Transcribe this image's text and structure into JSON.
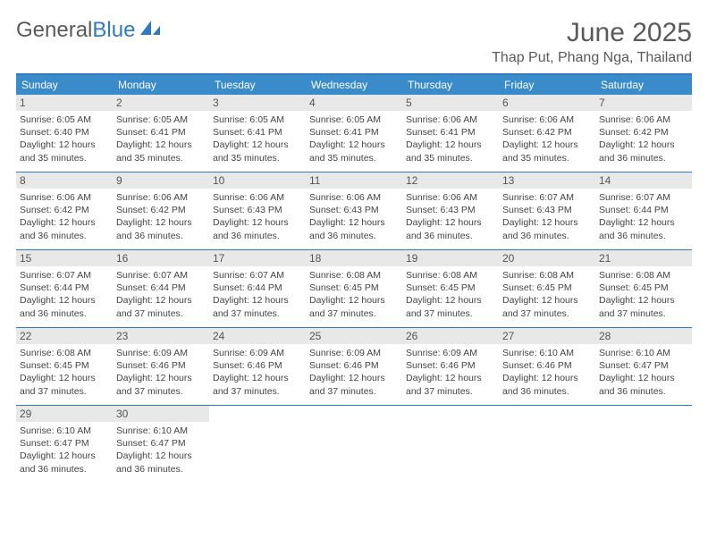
{
  "brand": {
    "part1": "General",
    "part2": "Blue"
  },
  "title": "June 2025",
  "location": "Thap Put, Phang Nga, Thailand",
  "colors": {
    "header_bg": "#3a8bc9",
    "border": "#2f7bbf",
    "daynum_bg": "#e8e8e8",
    "text": "#444444",
    "title_text": "#5a5a5a"
  },
  "dow": [
    "Sunday",
    "Monday",
    "Tuesday",
    "Wednesday",
    "Thursday",
    "Friday",
    "Saturday"
  ],
  "days": [
    {
      "n": "1",
      "sr": "6:05 AM",
      "ss": "6:40 PM",
      "dl": "12 hours and 35 minutes."
    },
    {
      "n": "2",
      "sr": "6:05 AM",
      "ss": "6:41 PM",
      "dl": "12 hours and 35 minutes."
    },
    {
      "n": "3",
      "sr": "6:05 AM",
      "ss": "6:41 PM",
      "dl": "12 hours and 35 minutes."
    },
    {
      "n": "4",
      "sr": "6:05 AM",
      "ss": "6:41 PM",
      "dl": "12 hours and 35 minutes."
    },
    {
      "n": "5",
      "sr": "6:06 AM",
      "ss": "6:41 PM",
      "dl": "12 hours and 35 minutes."
    },
    {
      "n": "6",
      "sr": "6:06 AM",
      "ss": "6:42 PM",
      "dl": "12 hours and 35 minutes."
    },
    {
      "n": "7",
      "sr": "6:06 AM",
      "ss": "6:42 PM",
      "dl": "12 hours and 36 minutes."
    },
    {
      "n": "8",
      "sr": "6:06 AM",
      "ss": "6:42 PM",
      "dl": "12 hours and 36 minutes."
    },
    {
      "n": "9",
      "sr": "6:06 AM",
      "ss": "6:42 PM",
      "dl": "12 hours and 36 minutes."
    },
    {
      "n": "10",
      "sr": "6:06 AM",
      "ss": "6:43 PM",
      "dl": "12 hours and 36 minutes."
    },
    {
      "n": "11",
      "sr": "6:06 AM",
      "ss": "6:43 PM",
      "dl": "12 hours and 36 minutes."
    },
    {
      "n": "12",
      "sr": "6:06 AM",
      "ss": "6:43 PM",
      "dl": "12 hours and 36 minutes."
    },
    {
      "n": "13",
      "sr": "6:07 AM",
      "ss": "6:43 PM",
      "dl": "12 hours and 36 minutes."
    },
    {
      "n": "14",
      "sr": "6:07 AM",
      "ss": "6:44 PM",
      "dl": "12 hours and 36 minutes."
    },
    {
      "n": "15",
      "sr": "6:07 AM",
      "ss": "6:44 PM",
      "dl": "12 hours and 36 minutes."
    },
    {
      "n": "16",
      "sr": "6:07 AM",
      "ss": "6:44 PM",
      "dl": "12 hours and 37 minutes."
    },
    {
      "n": "17",
      "sr": "6:07 AM",
      "ss": "6:44 PM",
      "dl": "12 hours and 37 minutes."
    },
    {
      "n": "18",
      "sr": "6:08 AM",
      "ss": "6:45 PM",
      "dl": "12 hours and 37 minutes."
    },
    {
      "n": "19",
      "sr": "6:08 AM",
      "ss": "6:45 PM",
      "dl": "12 hours and 37 minutes."
    },
    {
      "n": "20",
      "sr": "6:08 AM",
      "ss": "6:45 PM",
      "dl": "12 hours and 37 minutes."
    },
    {
      "n": "21",
      "sr": "6:08 AM",
      "ss": "6:45 PM",
      "dl": "12 hours and 37 minutes."
    },
    {
      "n": "22",
      "sr": "6:08 AM",
      "ss": "6:45 PM",
      "dl": "12 hours and 37 minutes."
    },
    {
      "n": "23",
      "sr": "6:09 AM",
      "ss": "6:46 PM",
      "dl": "12 hours and 37 minutes."
    },
    {
      "n": "24",
      "sr": "6:09 AM",
      "ss": "6:46 PM",
      "dl": "12 hours and 37 minutes."
    },
    {
      "n": "25",
      "sr": "6:09 AM",
      "ss": "6:46 PM",
      "dl": "12 hours and 37 minutes."
    },
    {
      "n": "26",
      "sr": "6:09 AM",
      "ss": "6:46 PM",
      "dl": "12 hours and 37 minutes."
    },
    {
      "n": "27",
      "sr": "6:10 AM",
      "ss": "6:46 PM",
      "dl": "12 hours and 36 minutes."
    },
    {
      "n": "28",
      "sr": "6:10 AM",
      "ss": "6:47 PM",
      "dl": "12 hours and 36 minutes."
    },
    {
      "n": "29",
      "sr": "6:10 AM",
      "ss": "6:47 PM",
      "dl": "12 hours and 36 minutes."
    },
    {
      "n": "30",
      "sr": "6:10 AM",
      "ss": "6:47 PM",
      "dl": "12 hours and 36 minutes."
    }
  ],
  "labels": {
    "sunrise": "Sunrise:",
    "sunset": "Sunset:",
    "daylight": "Daylight:"
  }
}
